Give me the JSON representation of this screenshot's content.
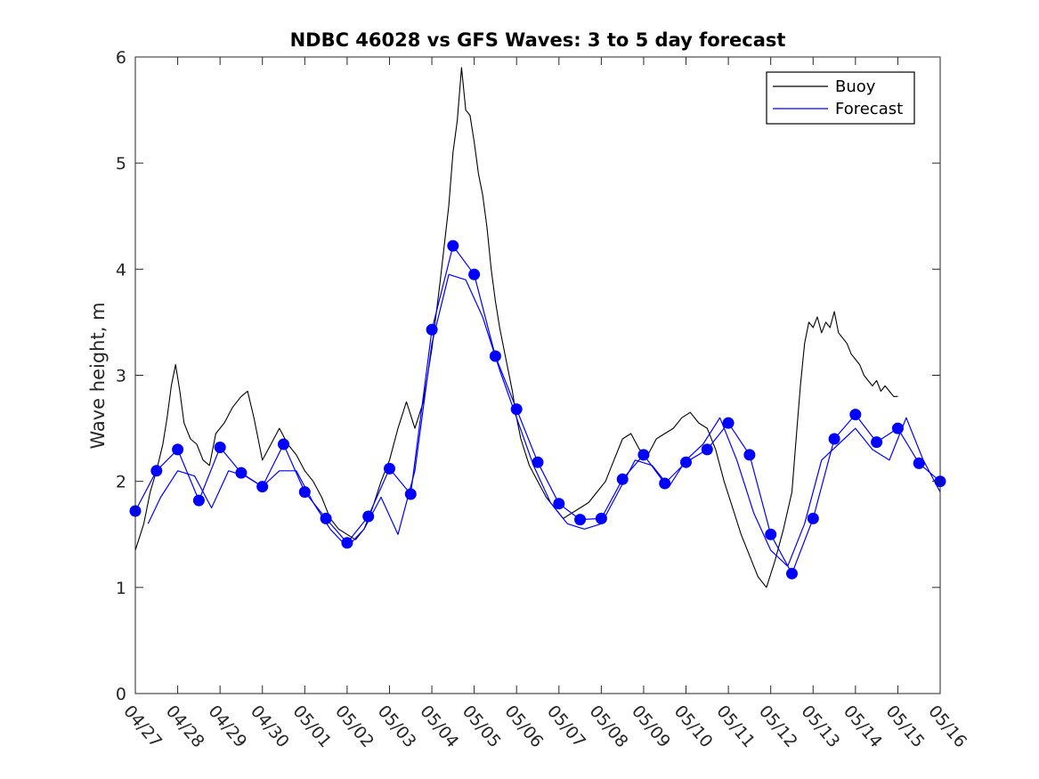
{
  "chart_data": {
    "type": "line",
    "title": "NDBC 46028 vs GFS Waves: 3 to 5 day forecast",
    "xlabel": "",
    "ylabel": "Wave height, m",
    "xlim": [
      "04/27",
      "05/16"
    ],
    "ylim": [
      0,
      6
    ],
    "x_ticks": [
      "04/27",
      "04/28",
      "04/29",
      "04/30",
      "05/01",
      "05/02",
      "05/03",
      "05/04",
      "05/05",
      "05/06",
      "05/07",
      "05/08",
      "05/09",
      "05/10",
      "05/11",
      "05/12",
      "05/13",
      "05/14",
      "05/15",
      "05/16"
    ],
    "y_ticks": [
      0,
      1,
      2,
      3,
      4,
      5,
      6
    ],
    "grid": false,
    "legend": {
      "position": "top-right",
      "entries": [
        "Buoy",
        "Forecast"
      ]
    },
    "colors": {
      "buoy": "#000000",
      "forecast": "#0000ff",
      "markers": "#0000ff"
    },
    "series": [
      {
        "name": "Buoy",
        "x": [
          0.0,
          0.2,
          0.35,
          0.5,
          0.65,
          0.75,
          0.85,
          0.95,
          1.05,
          1.15,
          1.3,
          1.45,
          1.6,
          1.75,
          1.9,
          2.1,
          2.3,
          2.5,
          2.65,
          2.8,
          3.0,
          3.2,
          3.4,
          3.6,
          3.8,
          4.0,
          4.2,
          4.4,
          4.6,
          4.8,
          5.0,
          5.2,
          5.4,
          5.6,
          5.8,
          6.0,
          6.2,
          6.4,
          6.6,
          6.8,
          7.0,
          7.2,
          7.4,
          7.5,
          7.6,
          7.7,
          7.8,
          7.9,
          8.0,
          8.1,
          8.2,
          8.3,
          8.4,
          8.5,
          8.6,
          8.7,
          8.8,
          8.9,
          9.0,
          9.1,
          9.3,
          9.5,
          9.7,
          9.9,
          10.1,
          10.3,
          10.5,
          10.7,
          10.9,
          11.1,
          11.3,
          11.5,
          11.7,
          11.9,
          12.1,
          12.3,
          12.5,
          12.7,
          12.9,
          13.1,
          13.3,
          13.5,
          13.7,
          13.9,
          14.1,
          14.3,
          14.5,
          14.7,
          14.9,
          15.1,
          15.3,
          15.5,
          15.6,
          15.7,
          15.8,
          15.9,
          16.0,
          16.1,
          16.2,
          16.3,
          16.4,
          16.5,
          16.6,
          16.7,
          16.8,
          16.9,
          17.0,
          17.1,
          17.2,
          17.3,
          17.4,
          17.5,
          17.6,
          17.7,
          17.8,
          17.9,
          18.0
        ],
        "y": [
          1.35,
          1.6,
          1.9,
          2.1,
          2.35,
          2.6,
          2.9,
          3.1,
          2.85,
          2.55,
          2.4,
          2.35,
          2.2,
          2.15,
          2.45,
          2.55,
          2.7,
          2.8,
          2.85,
          2.6,
          2.2,
          2.35,
          2.5,
          2.35,
          2.25,
          2.1,
          2.0,
          1.85,
          1.65,
          1.55,
          1.5,
          1.45,
          1.55,
          1.75,
          2.0,
          2.2,
          2.5,
          2.75,
          2.5,
          2.75,
          3.25,
          3.9,
          4.6,
          5.1,
          5.4,
          5.9,
          5.5,
          5.45,
          5.2,
          4.9,
          4.7,
          4.4,
          4.0,
          3.7,
          3.45,
          3.25,
          3.05,
          2.85,
          2.6,
          2.4,
          2.15,
          2.0,
          1.85,
          1.75,
          1.65,
          1.7,
          1.75,
          1.8,
          1.9,
          2.0,
          2.2,
          2.4,
          2.45,
          2.3,
          2.25,
          2.4,
          2.45,
          2.5,
          2.6,
          2.65,
          2.55,
          2.5,
          2.3,
          2.0,
          1.75,
          1.5,
          1.3,
          1.1,
          1.0,
          1.25,
          1.55,
          1.9,
          2.4,
          2.9,
          3.3,
          3.5,
          3.45,
          3.55,
          3.4,
          3.5,
          3.45,
          3.6,
          3.4,
          3.35,
          3.3,
          3.2,
          3.15,
          3.1,
          3.0,
          2.95,
          2.9,
          2.95,
          2.85,
          2.9,
          2.85,
          2.8,
          2.8
        ]
      },
      {
        "name": "Forecast",
        "x": [
          0.0,
          0.5,
          1.0,
          1.5,
          2.0,
          2.5,
          3.0,
          3.5,
          4.0,
          4.5,
          5.0,
          5.5,
          6.0,
          6.5,
          7.0,
          7.5,
          8.0,
          8.5,
          9.0,
          9.5,
          10.0,
          10.5,
          11.0,
          11.5,
          12.0,
          12.5,
          13.0,
          13.5,
          14.0,
          14.5,
          15.0,
          15.5,
          16.0,
          16.5,
          17.0,
          17.5,
          18.0,
          18.5,
          19.0
        ],
        "y": [
          1.72,
          2.1,
          2.3,
          1.82,
          2.32,
          2.08,
          1.95,
          2.35,
          1.9,
          1.65,
          1.42,
          1.67,
          2.12,
          1.88,
          3.43,
          4.22,
          3.95,
          3.18,
          2.68,
          2.18,
          1.79,
          1.64,
          1.65,
          2.02,
          2.25,
          1.98,
          2.18,
          2.3,
          2.55,
          2.25,
          1.5,
          1.13,
          1.65,
          2.4,
          2.63,
          2.37,
          2.5,
          2.17,
          2.0
        ]
      },
      {
        "name": "",
        "x": [
          0.3,
          0.6,
          1.0,
          1.4,
          1.8,
          2.2,
          2.6,
          3.0,
          3.4,
          3.8,
          4.2,
          4.6,
          5.0,
          5.4,
          5.8,
          6.2,
          6.6,
          7.0,
          7.4,
          7.8,
          8.2,
          8.6,
          9.0,
          9.4,
          9.8,
          10.2,
          10.6,
          11.0,
          11.4,
          11.8,
          12.2,
          12.6,
          13.0,
          13.4,
          13.8,
          14.2,
          14.6,
          15.0,
          15.4,
          15.8,
          16.2,
          16.6,
          17.0,
          17.4,
          17.8,
          18.2,
          18.6,
          19.0
        ],
        "y": [
          1.6,
          1.85,
          2.1,
          2.05,
          1.75,
          2.1,
          2.05,
          1.95,
          2.1,
          2.1,
          1.8,
          1.55,
          1.38,
          1.55,
          1.85,
          1.5,
          2.1,
          3.3,
          3.95,
          3.9,
          3.55,
          3.05,
          2.6,
          2.15,
          1.8,
          1.6,
          1.55,
          1.6,
          1.9,
          2.2,
          2.15,
          1.95,
          2.2,
          2.35,
          2.6,
          2.2,
          1.7,
          1.35,
          1.2,
          1.6,
          2.2,
          2.35,
          2.5,
          2.3,
          2.2,
          2.6,
          2.2,
          1.9
        ]
      }
    ]
  }
}
